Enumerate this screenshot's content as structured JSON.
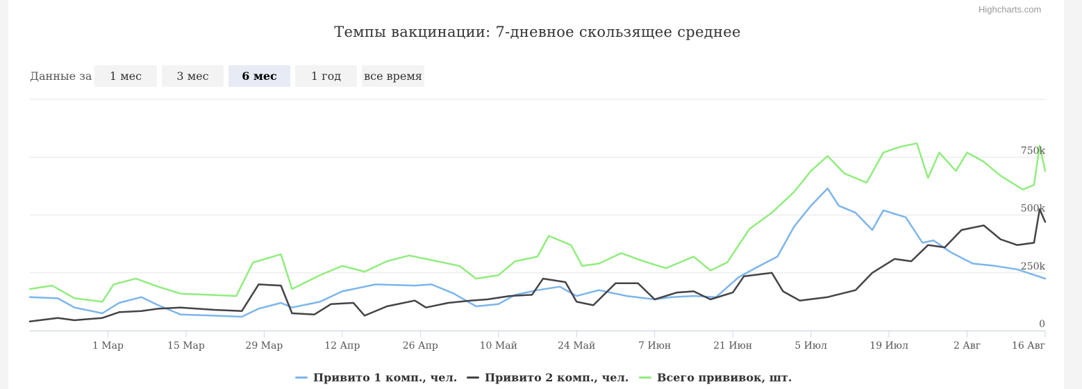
{
  "credits": "Highcharts.com",
  "range_selector": {
    "label": "Данные за",
    "buttons": [
      "1 мес",
      "3 мес",
      "6 мес",
      "1 год",
      "все время"
    ],
    "active": "6 мес"
  },
  "chart_data": {
    "type": "line",
    "title": "Темпы вакцинации: 7-дневное скользящее среднее",
    "x_range": [
      "2021-02-15",
      "2021-08-16"
    ],
    "x_ticks": [
      "1 Мар",
      "15 Мар",
      "29 Мар",
      "12 Апр",
      "26 Апр",
      "10 Май",
      "24 Май",
      "7 Июн",
      "21 Июн",
      "5 Июл",
      "19 Июл",
      "2 Авг",
      "16 Авг"
    ],
    "y_ticks": [
      "0",
      "250k",
      "500k",
      "750k"
    ],
    "ylim": [
      0,
      1000000
    ],
    "grid": true,
    "legend_position": "bottom",
    "series": [
      {
        "name": "Привито 1 комп., чел.",
        "color": "#7cb5ec",
        "points": [
          [
            "2021-02-15",
            145000
          ],
          [
            "2021-02-20",
            140000
          ],
          [
            "2021-02-23",
            100000
          ],
          [
            "2021-02-28",
            75000
          ],
          [
            "2021-03-03",
            120000
          ],
          [
            "2021-03-07",
            145000
          ],
          [
            "2021-03-10",
            110000
          ],
          [
            "2021-03-14",
            70000
          ],
          [
            "2021-03-20",
            65000
          ],
          [
            "2021-03-25",
            60000
          ],
          [
            "2021-03-28",
            95000
          ],
          [
            "2021-04-01",
            120000
          ],
          [
            "2021-04-03",
            100000
          ],
          [
            "2021-04-08",
            125000
          ],
          [
            "2021-04-12",
            170000
          ],
          [
            "2021-04-18",
            200000
          ],
          [
            "2021-04-25",
            195000
          ],
          [
            "2021-04-28",
            200000
          ],
          [
            "2021-05-02",
            160000
          ],
          [
            "2021-05-06",
            105000
          ],
          [
            "2021-05-10",
            115000
          ],
          [
            "2021-05-13",
            155000
          ],
          [
            "2021-05-17",
            175000
          ],
          [
            "2021-05-21",
            190000
          ],
          [
            "2021-05-24",
            150000
          ],
          [
            "2021-05-28",
            175000
          ],
          [
            "2021-06-02",
            150000
          ],
          [
            "2021-06-07",
            135000
          ],
          [
            "2021-06-10",
            145000
          ],
          [
            "2021-06-14",
            150000
          ],
          [
            "2021-06-18",
            145000
          ],
          [
            "2021-06-22",
            230000
          ],
          [
            "2021-06-25",
            270000
          ],
          [
            "2021-06-29",
            320000
          ],
          [
            "2021-07-02",
            450000
          ],
          [
            "2021-07-05",
            540000
          ],
          [
            "2021-07-08",
            615000
          ],
          [
            "2021-07-10",
            540000
          ],
          [
            "2021-07-13",
            510000
          ],
          [
            "2021-07-16",
            435000
          ],
          [
            "2021-07-18",
            520000
          ],
          [
            "2021-07-22",
            490000
          ],
          [
            "2021-07-25",
            380000
          ],
          [
            "2021-07-27",
            390000
          ],
          [
            "2021-07-30",
            340000
          ],
          [
            "2021-08-03",
            290000
          ],
          [
            "2021-08-07",
            280000
          ],
          [
            "2021-08-11",
            265000
          ],
          [
            "2021-08-16",
            225000
          ]
        ]
      },
      {
        "name": "Привито 2 комп., чел.",
        "color": "#434348",
        "points": [
          [
            "2021-02-15",
            40000
          ],
          [
            "2021-02-20",
            55000
          ],
          [
            "2021-02-23",
            45000
          ],
          [
            "2021-02-28",
            55000
          ],
          [
            "2021-03-03",
            80000
          ],
          [
            "2021-03-07",
            85000
          ],
          [
            "2021-03-10",
            95000
          ],
          [
            "2021-03-14",
            100000
          ],
          [
            "2021-03-20",
            90000
          ],
          [
            "2021-03-25",
            85000
          ],
          [
            "2021-03-28",
            200000
          ],
          [
            "2021-04-01",
            195000
          ],
          [
            "2021-04-03",
            75000
          ],
          [
            "2021-04-07",
            70000
          ],
          [
            "2021-04-10",
            115000
          ],
          [
            "2021-04-14",
            120000
          ],
          [
            "2021-04-16",
            65000
          ],
          [
            "2021-04-20",
            105000
          ],
          [
            "2021-04-25",
            130000
          ],
          [
            "2021-04-27",
            100000
          ],
          [
            "2021-05-01",
            120000
          ],
          [
            "2021-05-05",
            130000
          ],
          [
            "2021-05-08",
            135000
          ],
          [
            "2021-05-12",
            150000
          ],
          [
            "2021-05-16",
            155000
          ],
          [
            "2021-05-18",
            225000
          ],
          [
            "2021-05-22",
            210000
          ],
          [
            "2021-05-24",
            125000
          ],
          [
            "2021-05-27",
            110000
          ],
          [
            "2021-05-31",
            205000
          ],
          [
            "2021-06-04",
            205000
          ],
          [
            "2021-06-07",
            135000
          ],
          [
            "2021-06-11",
            165000
          ],
          [
            "2021-06-14",
            170000
          ],
          [
            "2021-06-17",
            135000
          ],
          [
            "2021-06-21",
            165000
          ],
          [
            "2021-06-23",
            235000
          ],
          [
            "2021-06-28",
            250000
          ],
          [
            "2021-06-30",
            170000
          ],
          [
            "2021-07-03",
            130000
          ],
          [
            "2021-07-08",
            145000
          ],
          [
            "2021-07-13",
            175000
          ],
          [
            "2021-07-16",
            250000
          ],
          [
            "2021-07-20",
            310000
          ],
          [
            "2021-07-23",
            300000
          ],
          [
            "2021-07-26",
            370000
          ],
          [
            "2021-07-29",
            360000
          ],
          [
            "2021-08-01",
            435000
          ],
          [
            "2021-08-05",
            455000
          ],
          [
            "2021-08-08",
            395000
          ],
          [
            "2021-08-11",
            370000
          ],
          [
            "2021-08-14",
            380000
          ],
          [
            "2021-08-15",
            525000
          ],
          [
            "2021-08-16",
            470000
          ]
        ]
      },
      {
        "name": "Всего прививок, шт.",
        "color": "#90ed7d",
        "points": [
          [
            "2021-02-15",
            180000
          ],
          [
            "2021-02-19",
            195000
          ],
          [
            "2021-02-23",
            140000
          ],
          [
            "2021-02-28",
            125000
          ],
          [
            "2021-03-02",
            200000
          ],
          [
            "2021-03-06",
            225000
          ],
          [
            "2021-03-10",
            190000
          ],
          [
            "2021-03-14",
            160000
          ],
          [
            "2021-03-19",
            155000
          ],
          [
            "2021-03-24",
            150000
          ],
          [
            "2021-03-27",
            295000
          ],
          [
            "2021-04-01",
            330000
          ],
          [
            "2021-04-03",
            180000
          ],
          [
            "2021-04-08",
            240000
          ],
          [
            "2021-04-12",
            280000
          ],
          [
            "2021-04-16",
            255000
          ],
          [
            "2021-04-20",
            300000
          ],
          [
            "2021-04-24",
            325000
          ],
          [
            "2021-04-29",
            300000
          ],
          [
            "2021-05-03",
            280000
          ],
          [
            "2021-05-06",
            225000
          ],
          [
            "2021-05-10",
            240000
          ],
          [
            "2021-05-13",
            300000
          ],
          [
            "2021-05-17",
            320000
          ],
          [
            "2021-05-19",
            410000
          ],
          [
            "2021-05-23",
            370000
          ],
          [
            "2021-05-25",
            280000
          ],
          [
            "2021-05-28",
            290000
          ],
          [
            "2021-06-01",
            335000
          ],
          [
            "2021-06-05",
            300000
          ],
          [
            "2021-06-09",
            270000
          ],
          [
            "2021-06-14",
            320000
          ],
          [
            "2021-06-17",
            260000
          ],
          [
            "2021-06-20",
            295000
          ],
          [
            "2021-06-24",
            440000
          ],
          [
            "2021-06-28",
            510000
          ],
          [
            "2021-07-02",
            600000
          ],
          [
            "2021-07-05",
            690000
          ],
          [
            "2021-07-08",
            755000
          ],
          [
            "2021-07-11",
            680000
          ],
          [
            "2021-07-15",
            640000
          ],
          [
            "2021-07-18",
            770000
          ],
          [
            "2021-07-21",
            795000
          ],
          [
            "2021-07-24",
            810000
          ],
          [
            "2021-07-26",
            660000
          ],
          [
            "2021-07-28",
            770000
          ],
          [
            "2021-07-31",
            690000
          ],
          [
            "2021-08-02",
            770000
          ],
          [
            "2021-08-05",
            730000
          ],
          [
            "2021-08-08",
            670000
          ],
          [
            "2021-08-12",
            610000
          ],
          [
            "2021-08-14",
            630000
          ],
          [
            "2021-08-15",
            800000
          ],
          [
            "2021-08-16",
            690000
          ]
        ]
      }
    ]
  }
}
